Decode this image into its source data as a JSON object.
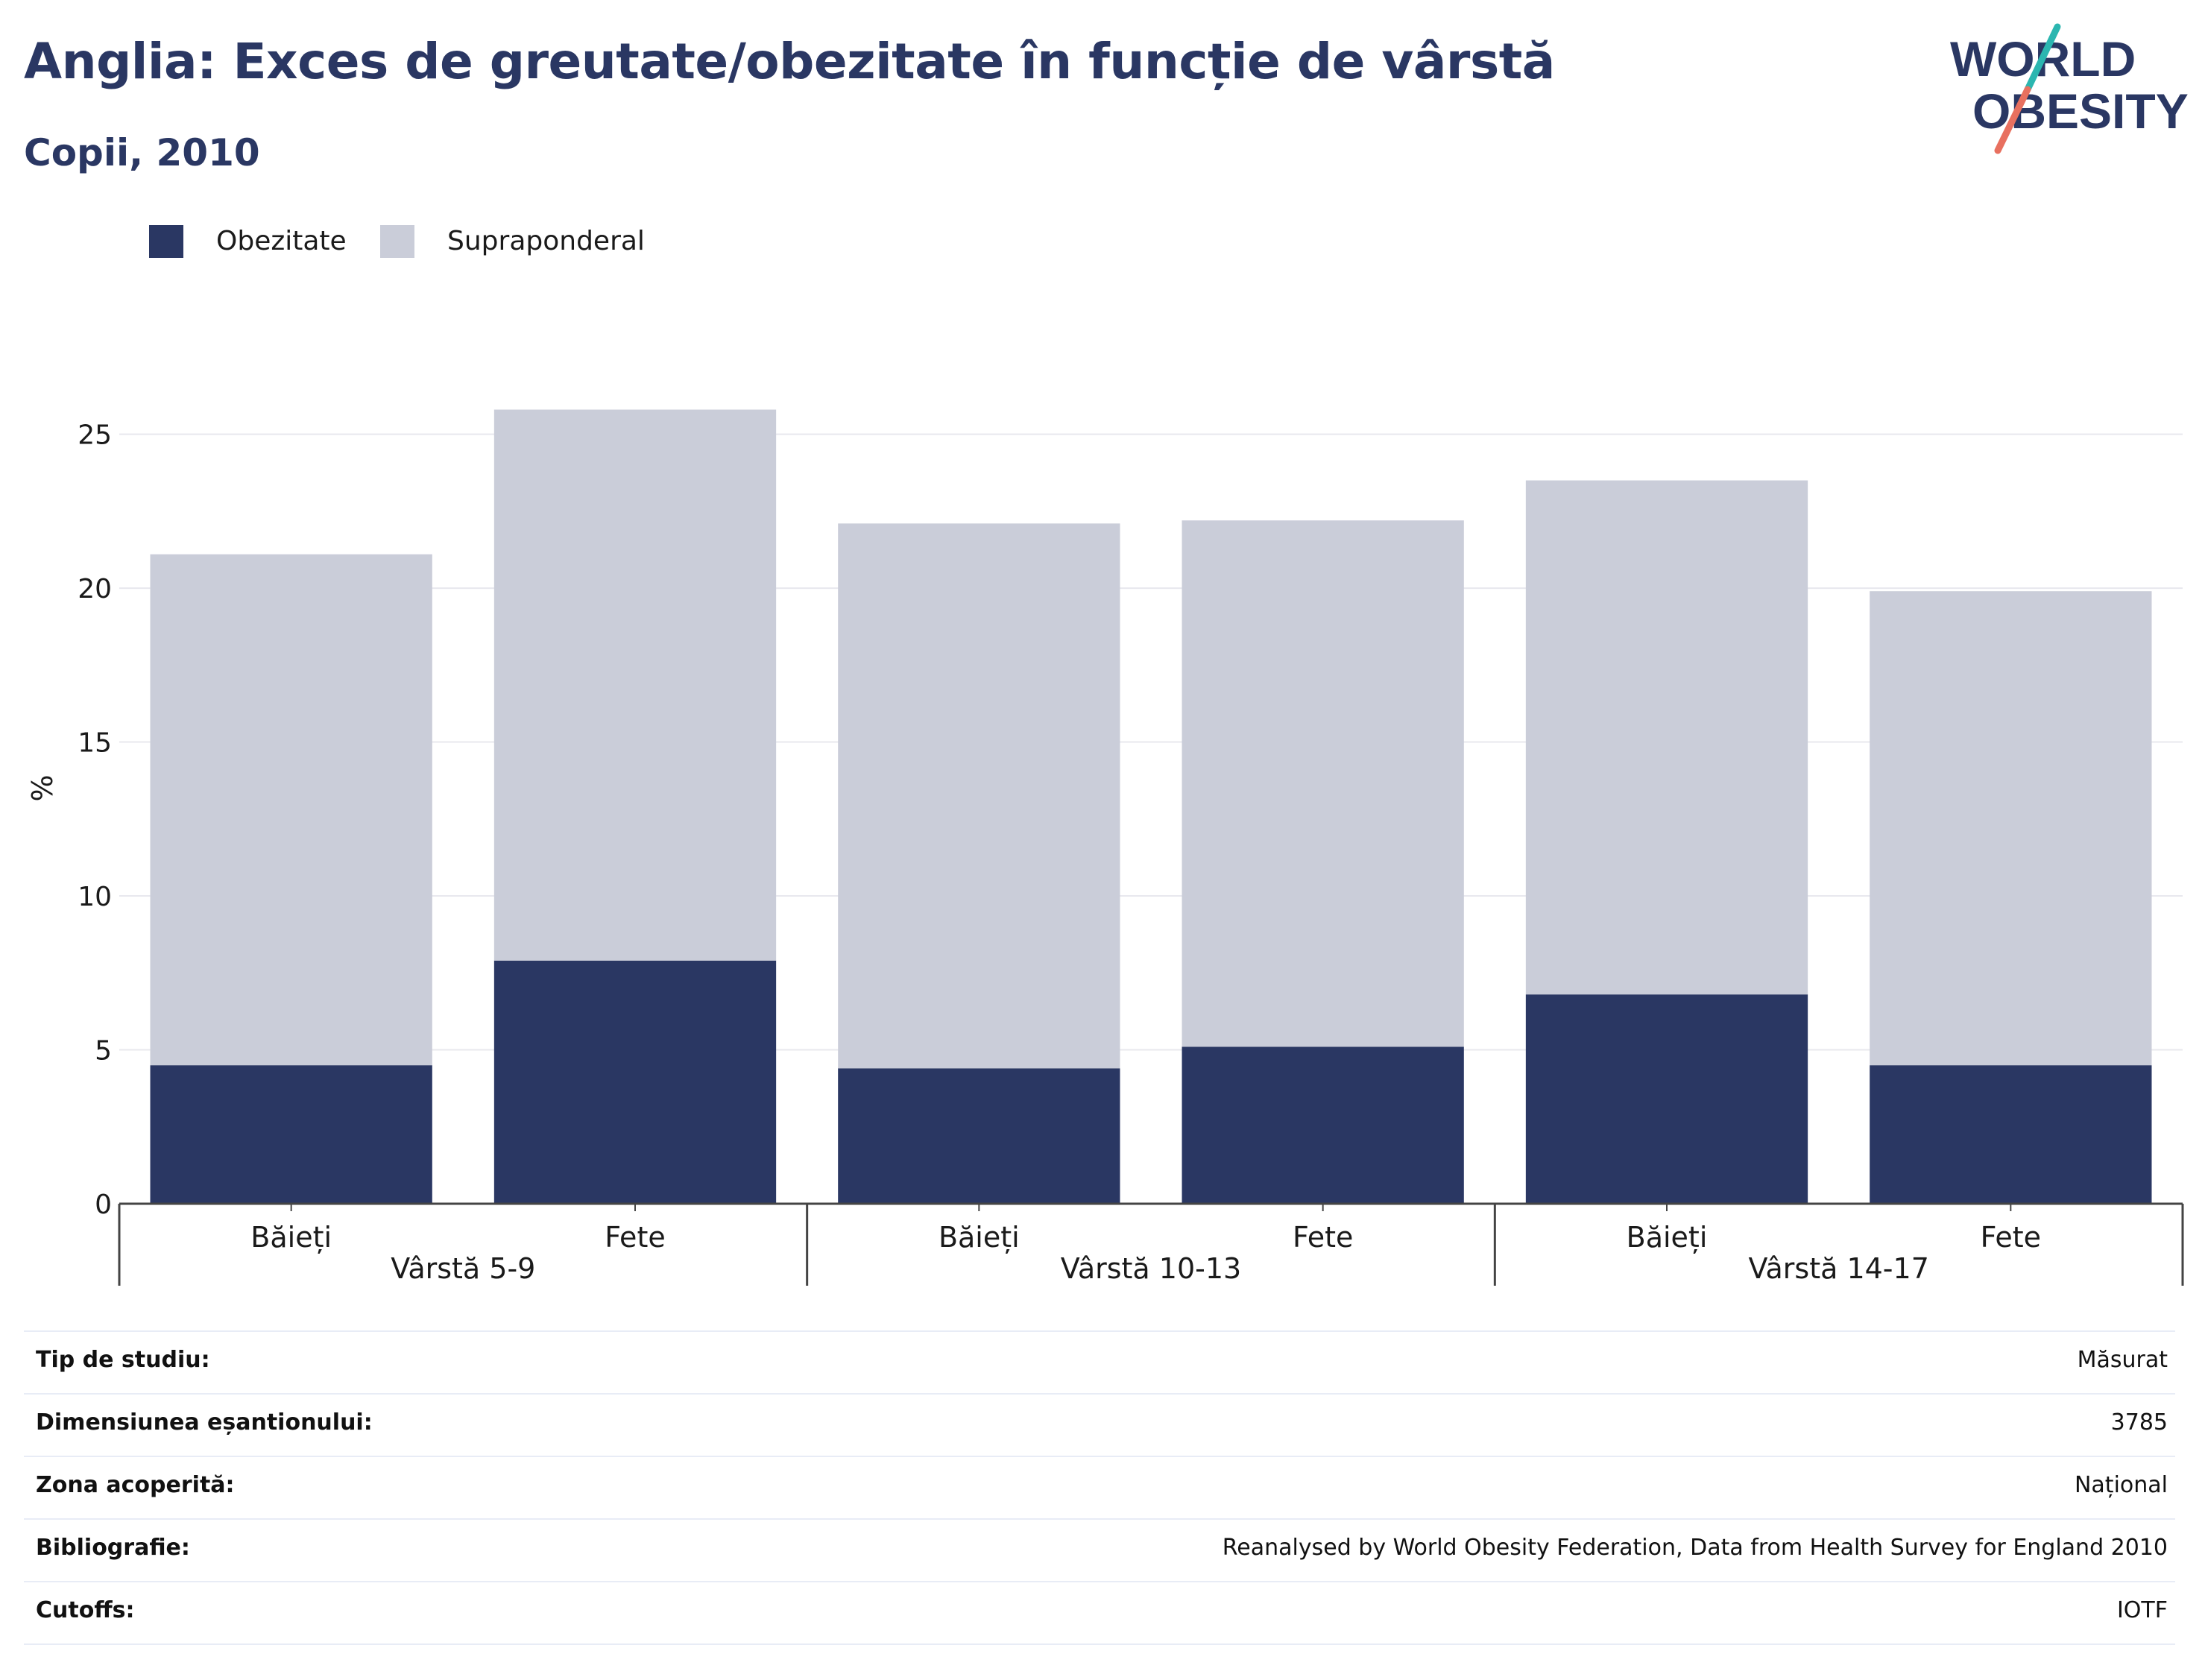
{
  "header": {
    "title": "Anglia: Exces de greutate/obezitate în funcție de vârstă",
    "subtitle": "Copii, 2010"
  },
  "logo": {
    "line1": "WORLD",
    "line2": "OBESITY"
  },
  "colors": {
    "obezitate": "#2a3763",
    "supraponderal": "#cacdd9",
    "title": "#2a3763",
    "grid": "#e8e8ee",
    "logo_teal": "#2bb6b0",
    "logo_coral": "#e8705f"
  },
  "chart_data": {
    "type": "bar",
    "stacked": true,
    "ylabel": "%",
    "ylim": [
      0,
      27
    ],
    "yticks": [
      0,
      5,
      10,
      15,
      20,
      25
    ],
    "grid": true,
    "legend_position": "top-left",
    "categories": [
      "Băieți",
      "Fete",
      "Băieți",
      "Fete",
      "Băieți",
      "Fete"
    ],
    "groups": [
      {
        "label": "Vârstă 5-9",
        "span": [
          0,
          1
        ]
      },
      {
        "label": "Vârstă 10-13",
        "span": [
          2,
          3
        ]
      },
      {
        "label": "Vârstă 14-17",
        "span": [
          4,
          5
        ]
      }
    ],
    "series": [
      {
        "name": "Obezitate",
        "values": [
          4.5,
          7.9,
          4.4,
          5.1,
          6.8,
          4.5
        ]
      },
      {
        "name": "Supraponderal",
        "values": [
          16.6,
          17.9,
          17.7,
          17.1,
          16.7,
          15.4
        ]
      }
    ]
  },
  "info_table": [
    {
      "key": "Tip de studiu:",
      "value": "Măsurat"
    },
    {
      "key": "Dimensiunea eșantionului:",
      "value": "3785"
    },
    {
      "key": "Zona acoperită:",
      "value": "Național"
    },
    {
      "key": "Bibliografie:",
      "value": "Reanalysed by World Obesity Federation, Data from Health Survey for England 2010"
    },
    {
      "key": "Cutoffs:",
      "value": "IOTF"
    }
  ]
}
